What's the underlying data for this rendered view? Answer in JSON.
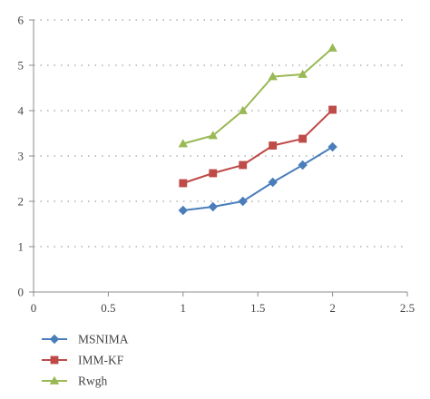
{
  "chart_data": {
    "type": "line",
    "title": "",
    "xlabel": "",
    "ylabel": "",
    "xlim": [
      0,
      2.5
    ],
    "ylim": [
      0,
      6
    ],
    "xticks": [
      "0",
      "0.5",
      "1",
      "1.5",
      "2",
      "2.5"
    ],
    "yticks": [
      "0",
      "1",
      "2",
      "3",
      "4",
      "5",
      "6"
    ],
    "grid": "horizontal dotted",
    "legend_position": "bottom-left",
    "x": [
      1.0,
      1.2,
      1.4,
      1.6,
      1.8,
      2.0
    ],
    "series": [
      {
        "name": "MSNIMA",
        "color": "#4a7ebb",
        "marker": "diamond",
        "values": [
          1.8,
          1.88,
          2.0,
          2.42,
          2.8,
          3.2
        ]
      },
      {
        "name": "IMM-KF",
        "color": "#be4b48",
        "marker": "square",
        "values": [
          2.4,
          2.62,
          2.8,
          3.23,
          3.38,
          4.02
        ]
      },
      {
        "name": "Rwgh",
        "color": "#98b954",
        "marker": "triangle",
        "values": [
          3.27,
          3.45,
          4.0,
          4.75,
          4.8,
          5.38
        ]
      }
    ]
  }
}
